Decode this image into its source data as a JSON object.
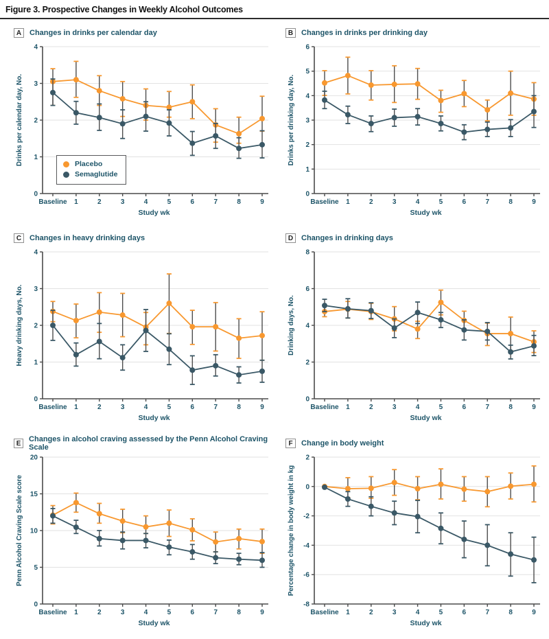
{
  "figure": {
    "title": "Figure 3. Prospective Changes in Weekly Alcohol Outcomes"
  },
  "colors": {
    "placebo": "#F8982F",
    "semaglutide": "#3A5866",
    "error_stem": "#4d4d4d",
    "grid": "#e2e2e2",
    "axis": "#4a4a4a",
    "text": "#1d5468"
  },
  "legend": {
    "items": [
      {
        "label": "Placebo",
        "color": "#F8982F"
      },
      {
        "label": "Semaglutide",
        "color": "#3A5866"
      }
    ]
  },
  "chart_data": [
    {
      "panel": "A",
      "badge": "A",
      "type": "line",
      "title": "Changes in drinks per calendar day",
      "ylabel": "Drinks per calendar day, No.",
      "xlabel": "Study wk",
      "ylim": [
        0,
        4
      ],
      "yticks": [
        0,
        1,
        2,
        3,
        4
      ],
      "categories": [
        "Baseline",
        "1",
        "2",
        "3",
        "4",
        "5",
        "6",
        "7",
        "8",
        "9"
      ],
      "legend_position": "lower-left",
      "series": [
        {
          "name": "Placebo",
          "color": "#F8982F",
          "values": [
            3.05,
            3.1,
            2.8,
            2.58,
            2.4,
            2.35,
            2.5,
            1.87,
            1.63,
            2.04
          ],
          "ci_low": [
            2.4,
            2.62,
            2.4,
            2.1,
            2.0,
            2.08,
            2.04,
            1.4,
            1.37,
            1.7
          ],
          "ci_high": [
            3.4,
            3.6,
            3.21,
            3.05,
            2.85,
            2.78,
            2.96,
            2.31,
            2.08,
            2.65
          ]
        },
        {
          "name": "Semaglutide",
          "color": "#3A5866",
          "values": [
            2.75,
            2.2,
            2.07,
            1.9,
            2.1,
            1.92,
            1.37,
            1.57,
            1.23,
            1.33
          ],
          "ci_low": [
            2.4,
            1.89,
            1.72,
            1.5,
            1.7,
            1.57,
            1.04,
            1.23,
            0.96,
            0.97
          ],
          "ci_high": [
            3.12,
            2.51,
            2.44,
            2.28,
            2.5,
            2.28,
            1.69,
            1.91,
            1.52,
            1.71
          ]
        }
      ]
    },
    {
      "panel": "B",
      "badge": "B",
      "type": "line",
      "title": "Changes in drinks per drinking day",
      "ylabel": "Drinks per drinking day, No.",
      "xlabel": "Study wk",
      "ylim": [
        0,
        6
      ],
      "yticks": [
        0,
        1,
        2,
        3,
        4,
        5,
        6
      ],
      "categories": [
        "Baseline",
        "1",
        "2",
        "3",
        "4",
        "5",
        "6",
        "7",
        "8",
        "9"
      ],
      "series": [
        {
          "name": "Placebo",
          "color": "#F8982F",
          "values": [
            4.52,
            4.82,
            4.43,
            4.46,
            4.48,
            3.8,
            4.08,
            3.42,
            4.1,
            3.86
          ],
          "ci_low": [
            4.01,
            4.07,
            3.82,
            3.72,
            3.85,
            3.32,
            3.55,
            2.97,
            3.2,
            3.2
          ],
          "ci_high": [
            5.02,
            5.57,
            5.02,
            5.22,
            5.11,
            4.22,
            4.62,
            3.82,
            5.0,
            4.53
          ]
        },
        {
          "name": "Semaglutide",
          "color": "#3A5866",
          "values": [
            3.82,
            3.22,
            2.86,
            3.1,
            3.14,
            2.86,
            2.51,
            2.62,
            2.68,
            3.35
          ],
          "ci_low": [
            3.47,
            2.86,
            2.53,
            2.75,
            2.8,
            2.56,
            2.2,
            2.33,
            2.33,
            2.7
          ],
          "ci_high": [
            4.18,
            3.57,
            3.17,
            3.45,
            3.47,
            3.17,
            2.81,
            2.92,
            3.02,
            4.0
          ]
        }
      ]
    },
    {
      "panel": "C",
      "badge": "C",
      "type": "line",
      "title": "Changes in heavy drinking days",
      "ylabel": "Heavy drinking days, No.",
      "xlabel": "Study wk",
      "ylim": [
        0,
        4
      ],
      "yticks": [
        0,
        1,
        2,
        3,
        4
      ],
      "categories": [
        "Baseline",
        "1",
        "2",
        "3",
        "4",
        "5",
        "6",
        "7",
        "8",
        "9"
      ],
      "series": [
        {
          "name": "Placebo",
          "color": "#F8982F",
          "values": [
            2.38,
            2.13,
            2.36,
            2.28,
            1.95,
            2.6,
            1.96,
            1.96,
            1.65,
            1.72
          ],
          "ci_low": [
            2.1,
            1.66,
            1.81,
            1.69,
            1.47,
            1.78,
            1.48,
            1.3,
            1.1,
            1.05
          ],
          "ci_high": [
            2.65,
            2.58,
            2.89,
            2.87,
            2.35,
            3.4,
            2.41,
            2.62,
            2.18,
            2.37
          ]
        },
        {
          "name": "Semaglutide",
          "color": "#3A5866",
          "values": [
            2.0,
            1.2,
            1.56,
            1.12,
            1.86,
            1.35,
            0.78,
            0.9,
            0.65,
            0.75
          ],
          "ci_low": [
            1.59,
            0.89,
            1.09,
            0.78,
            1.29,
            0.93,
            0.39,
            0.62,
            0.43,
            0.45
          ],
          "ci_high": [
            2.41,
            1.52,
            2.05,
            1.47,
            2.43,
            1.77,
            1.17,
            1.2,
            0.87,
            1.05
          ]
        }
      ]
    },
    {
      "panel": "D",
      "badge": "D",
      "type": "line",
      "title": "Changes in drinking days",
      "ylabel": "Drinking days, No.",
      "xlabel": "Study wk",
      "ylim": [
        0,
        8
      ],
      "yticks": [
        0,
        2,
        4,
        6,
        8
      ],
      "categories": [
        "Baseline",
        "1",
        "2",
        "3",
        "4",
        "5",
        "6",
        "7",
        "8",
        "9"
      ],
      "series": [
        {
          "name": "Placebo",
          "color": "#F8982F",
          "values": [
            4.75,
            4.88,
            4.75,
            4.35,
            3.8,
            5.25,
            4.27,
            3.55,
            3.55,
            3.1
          ],
          "ci_low": [
            4.47,
            4.4,
            4.32,
            3.7,
            3.28,
            4.57,
            3.78,
            2.9,
            2.62,
            2.52
          ],
          "ci_high": [
            5.03,
            5.3,
            5.2,
            5.02,
            4.22,
            5.92,
            4.77,
            4.12,
            4.45,
            3.7
          ]
        },
        {
          "name": "Semaglutide",
          "color": "#3A5866",
          "values": [
            5.08,
            4.9,
            4.8,
            3.85,
            4.7,
            4.3,
            3.75,
            3.67,
            2.55,
            2.88
          ],
          "ci_low": [
            4.75,
            4.4,
            4.37,
            3.33,
            4.1,
            3.88,
            3.2,
            3.2,
            2.17,
            2.35
          ],
          "ci_high": [
            5.42,
            5.45,
            5.23,
            4.35,
            5.27,
            4.7,
            4.3,
            4.15,
            2.92,
            3.45
          ]
        }
      ]
    },
    {
      "panel": "E",
      "badge": "E",
      "type": "line",
      "title": "Changes in alcohol craving assessed by the Penn Alcohol Craving Scale",
      "ylabel": "Penn Alcohol Craving Scale score",
      "xlabel": "Study wk",
      "ylim": [
        0,
        20
      ],
      "yticks": [
        0,
        5,
        10,
        15,
        20
      ],
      "categories": [
        "Baseline",
        "1",
        "2",
        "3",
        "4",
        "5",
        "6",
        "7",
        "8",
        "9"
      ],
      "series": [
        {
          "name": "Placebo",
          "color": "#F8982F",
          "values": [
            12.1,
            13.8,
            12.3,
            11.3,
            10.5,
            11.0,
            10.1,
            8.45,
            8.9,
            8.5
          ],
          "ci_low": [
            10.9,
            12.5,
            11.0,
            9.7,
            9.6,
            9.2,
            8.6,
            7.1,
            7.5,
            6.9
          ],
          "ci_high": [
            13.4,
            15.1,
            13.7,
            12.9,
            12.0,
            12.8,
            11.6,
            9.8,
            10.2,
            10.2
          ]
        },
        {
          "name": "Semaglutide",
          "color": "#3A5866",
          "values": [
            12.0,
            10.45,
            8.9,
            8.65,
            8.65,
            7.75,
            7.1,
            6.3,
            6.1,
            5.95
          ],
          "ci_low": [
            11.0,
            9.6,
            7.9,
            7.5,
            7.65,
            6.7,
            6.1,
            5.5,
            5.35,
            5.0
          ],
          "ci_high": [
            13.0,
            11.4,
            10.0,
            9.8,
            9.6,
            8.7,
            8.1,
            7.1,
            6.9,
            7.0
          ]
        }
      ]
    },
    {
      "panel": "F",
      "badge": "F",
      "type": "line",
      "title": "Change in body weight",
      "ylabel": "Percentage change in body weight in kg",
      "xlabel": "Study wk",
      "ylim": [
        -8,
        2
      ],
      "yticks": [
        -8,
        -6,
        -4,
        -2,
        0,
        2
      ],
      "categories": [
        "Baseline",
        "1",
        "2",
        "3",
        "4",
        "5",
        "6",
        "7",
        "8",
        "9"
      ],
      "series": [
        {
          "name": "Placebo",
          "color": "#F8982F",
          "values": [
            0.0,
            -0.15,
            -0.12,
            0.27,
            -0.15,
            0.15,
            -0.18,
            -0.35,
            0.02,
            0.15
          ],
          "ci_low": [
            null,
            -0.75,
            -0.8,
            -0.6,
            -0.9,
            -0.85,
            -1.0,
            -1.38,
            -0.85,
            -1.05
          ],
          "ci_high": [
            null,
            0.6,
            0.67,
            1.15,
            0.67,
            1.2,
            0.67,
            0.67,
            0.92,
            1.4
          ]
        },
        {
          "name": "Semaglutide",
          "color": "#3A5866",
          "values": [
            -0.05,
            -0.85,
            -1.35,
            -1.8,
            -2.05,
            -2.85,
            -3.6,
            -4.0,
            -4.6,
            -5.0
          ],
          "ci_low": [
            null,
            -1.35,
            -2.0,
            -2.6,
            -3.15,
            -3.9,
            -4.85,
            -5.4,
            -6.1,
            -6.55
          ],
          "ci_high": [
            null,
            -0.35,
            -0.7,
            -1.0,
            -0.95,
            -1.8,
            -2.35,
            -2.6,
            -3.15,
            -3.45
          ]
        }
      ]
    }
  ]
}
